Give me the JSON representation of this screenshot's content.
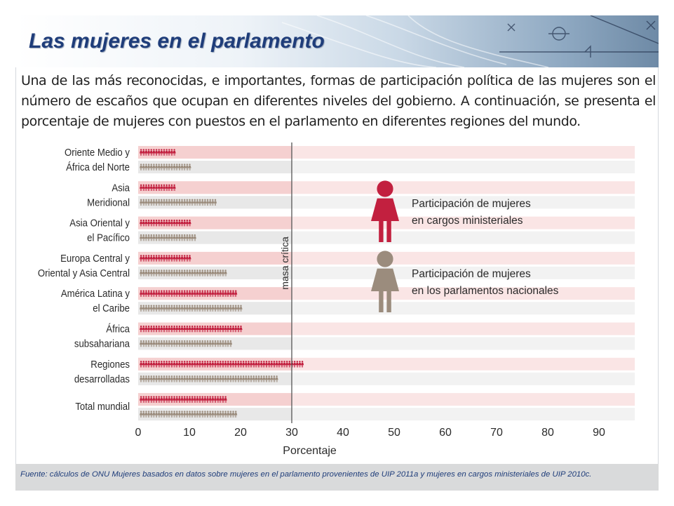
{
  "title": "Las mujeres en el parlamento",
  "intro": "Una de las más reconocidas, e importantes, formas de participación política de las mujeres son el número de escaños que ocupan en diferentes niveles del gobierno. A continuación, se presenta el porcentaje de mujeres con puestos en el parlamento en diferentes regiones del mundo.",
  "footer": "Fuente: cálculos de ONU Mujeres basados en datos sobre mujeres en el parlamento provenientes de UIP 2011a y mujeres en cargos ministeriales de UIP 2010c.",
  "colors": {
    "ministerial": "#c2203f",
    "parliament": "#9b8c7d",
    "ministerial_band": "#f5d0d0",
    "parliament_band": "#e8e8e8",
    "title": "#1f3d7a"
  },
  "chart_data": {
    "type": "bar",
    "xlabel": "Porcentaje",
    "xlim": [
      0,
      97
    ],
    "xticks": [
      0,
      10,
      20,
      30,
      40,
      50,
      60,
      70,
      80,
      90
    ],
    "reference_line": {
      "value": 30,
      "label": "masa crítica"
    },
    "categories": [
      [
        "Oriente Medio y",
        "África del Norte"
      ],
      [
        "Asia",
        "Meridional"
      ],
      [
        "Asia Oriental y",
        "el Pacífico"
      ],
      [
        "Europa Central y",
        "Oriental y Asia Central"
      ],
      [
        "América Latina y",
        "el Caribe"
      ],
      [
        "África",
        "subsahariana"
      ],
      [
        "Regiones",
        "desarrolladas"
      ],
      [
        "Total mundial"
      ]
    ],
    "series": [
      {
        "name": "Participación de mujeres en cargos ministeriales",
        "legend": [
          "Participación de mujeres",
          "en cargos ministeriales"
        ],
        "icon": "woman-icon",
        "values": [
          7,
          7,
          10,
          10,
          19,
          20,
          32,
          17
        ]
      },
      {
        "name": "Participación de mujeres en los parlamentos nacionales",
        "legend": [
          "Participación de mujeres",
          "en los parlamentos nacionales"
        ],
        "icon": "woman-icon",
        "values": [
          10,
          15,
          11,
          17,
          20,
          18,
          27,
          19
        ]
      }
    ],
    "legend_position": "center-right",
    "grid": false
  }
}
